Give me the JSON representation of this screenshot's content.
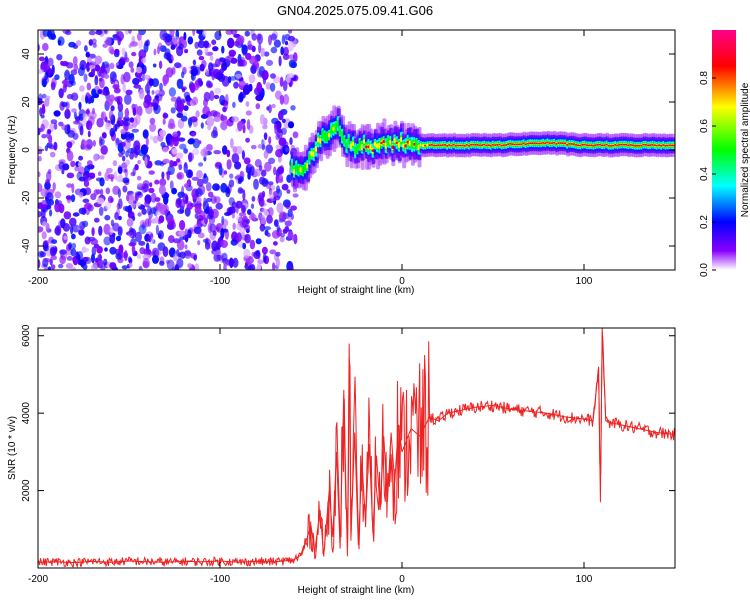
{
  "title": "GN04.2025.075.09.41.G06",
  "chart_data": [
    {
      "type": "heatmap",
      "xlabel": "Height of straight line (km)",
      "ylabel": "Frequency (Hz)",
      "xlim": [
        -200,
        150
      ],
      "ylim": [
        -50,
        50
      ],
      "x_ticks": [
        "-200",
        "-100",
        "0",
        "100"
      ],
      "y_ticks": [
        "-40",
        "-20",
        "0",
        "20",
        "40"
      ],
      "colorbar": {
        "label": "Normalized spectral amplitude",
        "range": [
          0,
          1
        ],
        "ticks": [
          "0.0",
          "0.2",
          "0.4",
          "0.6",
          "0.8"
        ],
        "colors": [
          "#ffffff",
          "#8800ff",
          "#0000ff",
          "#00ffff",
          "#00ff00",
          "#ffff00",
          "#ff0000",
          "#ff0088"
        ]
      },
      "noise_region": {
        "x_range": [
          -200,
          -58
        ],
        "freq_range": [
          -50,
          50
        ],
        "amplitude_range": [
          0.02,
          0.22
        ]
      },
      "ridge": [
        {
          "x": -60,
          "freq": -8
        },
        {
          "x": -55,
          "freq": -9
        },
        {
          "x": -50,
          "freq": -4
        },
        {
          "x": -45,
          "freq": 4
        },
        {
          "x": -40,
          "freq": 7
        },
        {
          "x": -35,
          "freq": 10
        },
        {
          "x": -30,
          "freq": 3
        },
        {
          "x": -25,
          "freq": 1
        },
        {
          "x": -20,
          "freq": 3
        },
        {
          "x": -15,
          "freq": 1
        },
        {
          "x": -10,
          "freq": 2
        },
        {
          "x": 0,
          "freq": 3
        },
        {
          "x": 10,
          "freq": 2
        },
        {
          "x": 50,
          "freq": 2
        },
        {
          "x": 80,
          "freq": 3
        },
        {
          "x": 100,
          "freq": 2
        },
        {
          "x": 110,
          "freq": 2
        },
        {
          "x": 150,
          "freq": 2
        }
      ]
    },
    {
      "type": "line",
      "xlabel": "Height of straight line (km)",
      "ylabel": "SNR (10 * v/v)",
      "xlim": [
        -200,
        150
      ],
      "ylim": [
        0,
        6200
      ],
      "x_ticks": [
        "-200",
        "-100",
        "0",
        "100"
      ],
      "y_ticks": [
        "2000",
        "4000",
        "6000"
      ],
      "series": [
        {
          "color": "#ee2222",
          "x": [
            -200,
            -190,
            -180,
            -170,
            -160,
            -150,
            -140,
            -130,
            -120,
            -110,
            -100,
            -90,
            -80,
            -70,
            -60,
            -55,
            -50,
            -48,
            -45,
            -43,
            -40,
            -38,
            -36,
            -34,
            -32,
            -30,
            -29,
            -28,
            -26,
            -24,
            -22,
            -20,
            -18,
            -16,
            -14,
            -12,
            -10,
            -8,
            -6,
            -4,
            -2,
            0,
            5,
            10,
            15,
            20,
            25,
            30,
            40,
            50,
            60,
            70,
            80,
            90,
            100,
            105,
            107,
            108,
            109,
            110,
            112,
            115,
            120,
            130,
            140,
            150
          ],
          "y": [
            150,
            160,
            140,
            170,
            150,
            180,
            160,
            150,
            170,
            160,
            180,
            150,
            170,
            160,
            200,
            350,
            1100,
            400,
            1500,
            300,
            2000,
            800,
            3000,
            500,
            4600,
            300,
            5800,
            800,
            3500,
            600,
            2700,
            1200,
            3200,
            900,
            2900,
            1500,
            3400,
            1700,
            3500,
            2200,
            3700,
            3000,
            3600,
            3400,
            3900,
            3800,
            4000,
            4050,
            4150,
            4200,
            4100,
            4050,
            4000,
            3900,
            3850,
            3800,
            4700,
            5200,
            1700,
            6200,
            3800,
            3750,
            3700,
            3600,
            3500,
            3450
          ]
        }
      ]
    }
  ]
}
